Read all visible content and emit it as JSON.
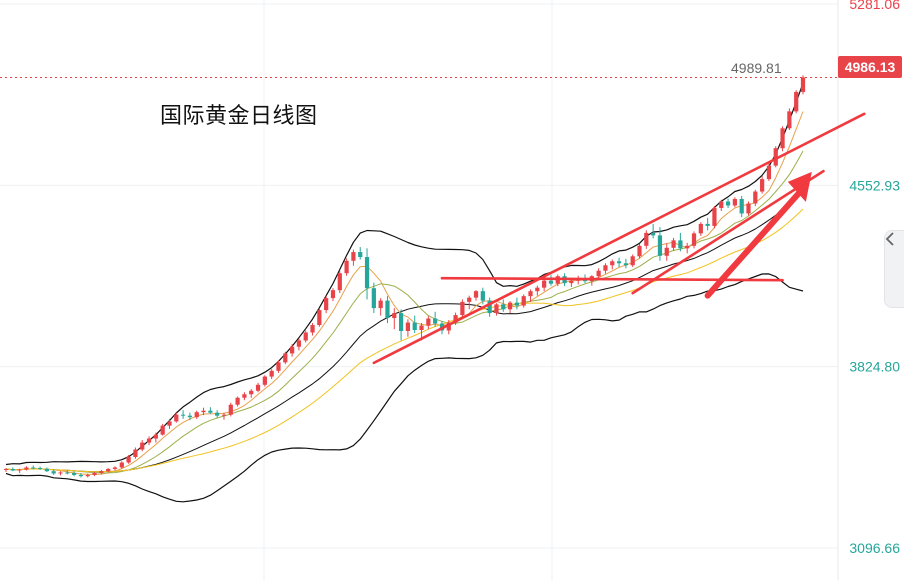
{
  "chart_data": {
    "type": "candlestick",
    "title": "国际黄金日线图",
    "price_scale": {
      "min": 3096.66,
      "max": 5281.06,
      "ticks": [
        "5281.06",
        "4552.93",
        "3824.80",
        "3096.66"
      ]
    },
    "last_price": "4986.13",
    "hover_price": "4989.81",
    "up_color": "#e9434a",
    "down_color": "#26a69a",
    "candles": [
      [
        3410,
        3418,
        3402,
        3414
      ],
      [
        3414,
        3420,
        3405,
        3408
      ],
      [
        3408,
        3415,
        3398,
        3412
      ],
      [
        3412,
        3425,
        3408,
        3420
      ],
      [
        3420,
        3428,
        3412,
        3418
      ],
      [
        3418,
        3424,
        3410,
        3414
      ],
      [
        3414,
        3420,
        3402,
        3405
      ],
      [
        3405,
        3412,
        3390,
        3396
      ],
      [
        3396,
        3405,
        3388,
        3400
      ],
      [
        3400,
        3408,
        3392,
        3398
      ],
      [
        3398,
        3404,
        3385,
        3390
      ],
      [
        3390,
        3398,
        3380,
        3385
      ],
      [
        3385,
        3395,
        3380,
        3390
      ],
      [
        3390,
        3402,
        3385,
        3398
      ],
      [
        3398,
        3410,
        3392,
        3405
      ],
      [
        3405,
        3418,
        3400,
        3414
      ],
      [
        3414,
        3425,
        3408,
        3420
      ],
      [
        3420,
        3445,
        3415,
        3440
      ],
      [
        3440,
        3470,
        3435,
        3462
      ],
      [
        3462,
        3500,
        3455,
        3492
      ],
      [
        3492,
        3530,
        3485,
        3520
      ],
      [
        3520,
        3545,
        3510,
        3536
      ],
      [
        3536,
        3560,
        3520,
        3552
      ],
      [
        3552,
        3595,
        3548,
        3588
      ],
      [
        3588,
        3615,
        3575,
        3605
      ],
      [
        3605,
        3640,
        3600,
        3632
      ],
      [
        3632,
        3650,
        3615,
        3628
      ],
      [
        3628,
        3640,
        3610,
        3622
      ],
      [
        3622,
        3648,
        3615,
        3642
      ],
      [
        3642,
        3660,
        3630,
        3648
      ],
      [
        3648,
        3662,
        3635,
        3640
      ],
      [
        3640,
        3650,
        3620,
        3628
      ],
      [
        3628,
        3640,
        3612,
        3632
      ],
      [
        3632,
        3680,
        3625,
        3672
      ],
      [
        3672,
        3705,
        3665,
        3700
      ],
      [
        3700,
        3722,
        3690,
        3714
      ],
      [
        3714,
        3735,
        3700,
        3728
      ],
      [
        3728,
        3760,
        3722,
        3752
      ],
      [
        3752,
        3790,
        3745,
        3785
      ],
      [
        3785,
        3815,
        3775,
        3808
      ],
      [
        3808,
        3850,
        3800,
        3842
      ],
      [
        3842,
        3885,
        3835,
        3878
      ],
      [
        3878,
        3915,
        3865,
        3905
      ],
      [
        3905,
        3938,
        3890,
        3930
      ],
      [
        3930,
        3970,
        3922,
        3962
      ],
      [
        3962,
        4000,
        3950,
        3992
      ],
      [
        3992,
        4060,
        3985,
        4052
      ],
      [
        4052,
        4110,
        4040,
        4100
      ],
      [
        4100,
        4140,
        4088,
        4132
      ],
      [
        4132,
        4210,
        4120,
        4200
      ],
      [
        4200,
        4260,
        4190,
        4250
      ],
      [
        4250,
        4295,
        4230,
        4285
      ],
      [
        4285,
        4305,
        4255,
        4265
      ],
      [
        4265,
        4300,
        4095,
        4140
      ],
      [
        4140,
        4162,
        4040,
        4060
      ],
      [
        4060,
        4100,
        4030,
        4090
      ],
      [
        4090,
        4108,
        4000,
        4020
      ],
      [
        4020,
        4060,
        3975,
        4040
      ],
      [
        4040,
        4055,
        3930,
        3968
      ],
      [
        3968,
        4015,
        3945,
        4002
      ],
      [
        4002,
        4030,
        3960,
        3972
      ],
      [
        3972,
        4000,
        3930,
        3990
      ],
      [
        3990,
        4028,
        3975,
        4018
      ],
      [
        4018,
        4045,
        3985,
        3998
      ],
      [
        3998,
        4008,
        3955,
        3970
      ],
      [
        3970,
        4012,
        3955,
        4002
      ],
      [
        4002,
        4042,
        3992,
        4032
      ],
      [
        4032,
        4095,
        4022,
        4085
      ],
      [
        4085,
        4110,
        4055,
        4102
      ],
      [
        4102,
        4132,
        4090,
        4128
      ],
      [
        4128,
        4142,
        4075,
        4090
      ],
      [
        4090,
        4102,
        4025,
        4040
      ],
      [
        4040,
        4080,
        4030,
        4075
      ],
      [
        4075,
        4095,
        4045,
        4055
      ],
      [
        4055,
        4088,
        4040,
        4082
      ],
      [
        4082,
        4102,
        4055,
        4070
      ],
      [
        4070,
        4115,
        4062,
        4108
      ],
      [
        4108,
        4135,
        4085,
        4128
      ],
      [
        4128,
        4150,
        4110,
        4142
      ],
      [
        4142,
        4178,
        4128,
        4170
      ],
      [
        4170,
        4192,
        4150,
        4158
      ],
      [
        4158,
        4195,
        4148,
        4188
      ],
      [
        4188,
        4200,
        4148,
        4160
      ],
      [
        4160,
        4182,
        4145,
        4170
      ],
      [
        4170,
        4190,
        4155,
        4180
      ],
      [
        4180,
        4195,
        4160,
        4168
      ],
      [
        4168,
        4192,
        4150,
        4188
      ],
      [
        4188,
        4220,
        4175,
        4210
      ],
      [
        4210,
        4240,
        4198,
        4232
      ],
      [
        4232,
        4255,
        4215,
        4248
      ],
      [
        4248,
        4262,
        4225,
        4240
      ],
      [
        4240,
        4258,
        4220,
        4232
      ],
      [
        4232,
        4275,
        4225,
        4268
      ],
      [
        4268,
        4318,
        4260,
        4310
      ],
      [
        4310,
        4372,
        4298,
        4362
      ],
      [
        4362,
        4398,
        4340,
        4352
      ],
      [
        4352,
        4385,
        4250,
        4270
      ],
      [
        4270,
        4320,
        4250,
        4302
      ],
      [
        4302,
        4342,
        4290,
        4332
      ],
      [
        4332,
        4362,
        4288,
        4300
      ],
      [
        4300,
        4322,
        4280,
        4310
      ],
      [
        4310,
        4368,
        4300,
        4360
      ],
      [
        4360,
        4405,
        4350,
        4398
      ],
      [
        4398,
        4422,
        4372,
        4390
      ],
      [
        4390,
        4470,
        4380,
        4462
      ],
      [
        4462,
        4495,
        4450,
        4488
      ],
      [
        4488,
        4500,
        4462,
        4472
      ],
      [
        4472,
        4505,
        4465,
        4498
      ],
      [
        4498,
        4510,
        4425,
        4440
      ],
      [
        4440,
        4488,
        4432,
        4480
      ],
      [
        4480,
        4535,
        4470,
        4528
      ],
      [
        4528,
        4590,
        4520,
        4578
      ],
      [
        4578,
        4640,
        4570,
        4632
      ],
      [
        4632,
        4710,
        4625,
        4702
      ],
      [
        4702,
        4790,
        4690,
        4782
      ],
      [
        4782,
        4862,
        4775,
        4850
      ],
      [
        4850,
        4935,
        4842,
        4928
      ],
      [
        4928,
        4995,
        4918,
        4986
      ]
    ]
  }
}
